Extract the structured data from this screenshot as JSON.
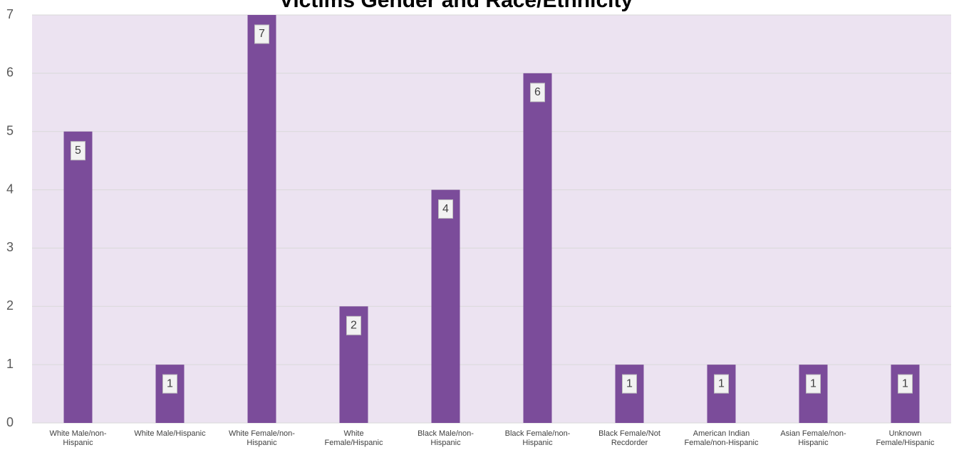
{
  "chart_data": {
    "type": "bar",
    "title": "Victims Gender and Race/Ethnicity",
    "categories": [
      "White Male/non-Hispanic",
      "White Male/Hispanic",
      "White Female/non-Hispanic",
      "White Female/Hispanic",
      "Black Male/non-Hispanic",
      "Black Female/non-Hispanic",
      "Black Female/Not Recdorder",
      "American Indian Female/non-Hispanic",
      "Asian Female/non-Hispanic",
      "Unknown Female/Hispanic"
    ],
    "values": [
      5,
      1,
      7,
      2,
      4,
      6,
      1,
      1,
      1,
      1
    ],
    "color": "#7b4c9a",
    "ylim": [
      0,
      7
    ],
    "yticks": [
      0,
      1,
      2,
      3,
      4,
      5,
      6,
      7
    ],
    "grid": true
  }
}
